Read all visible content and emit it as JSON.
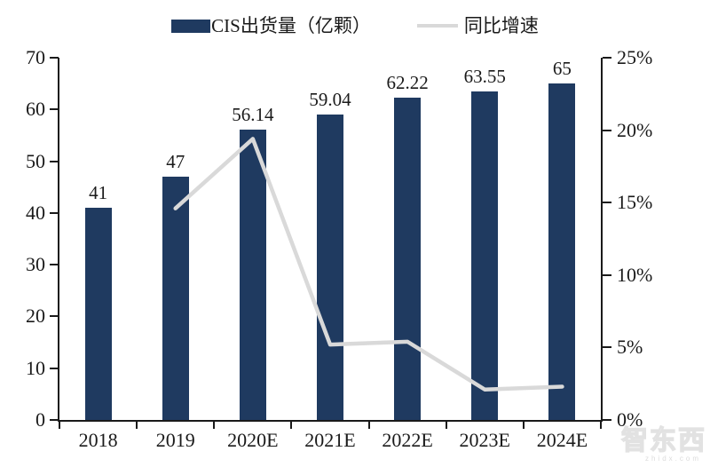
{
  "chart_data": {
    "type": "bar",
    "subtype": "combo-bar-line-dual-axis",
    "categories": [
      "2018",
      "2019",
      "2020E",
      "2021E",
      "2022E",
      "2023E",
      "2024E"
    ],
    "series": [
      {
        "name": "CIS出货量（亿颗）",
        "chart_type": "bar",
        "axis": "left",
        "color": "#1F3A60",
        "values": [
          41,
          47,
          56.14,
          59.04,
          62.22,
          63.55,
          65
        ],
        "data_labels": [
          "41",
          "47",
          "56.14",
          "59.04",
          "62.22",
          "63.55",
          "65"
        ]
      },
      {
        "name": "同比增速",
        "chart_type": "line",
        "axis": "right",
        "color": "#D9D9D9",
        "values": [
          null,
          14.6,
          19.4,
          5.2,
          5.4,
          2.1,
          2.3
        ]
      }
    ],
    "left_axis": {
      "min": 0,
      "max": 70,
      "step": 10,
      "tick_labels": [
        "0",
        "10",
        "20",
        "30",
        "40",
        "50",
        "60",
        "70"
      ]
    },
    "right_axis": {
      "min": 0,
      "max": 25,
      "step": 5,
      "tick_labels": [
        "0%",
        "5%",
        "10%",
        "15%",
        "20%",
        "25%"
      ]
    },
    "legend_position": "top",
    "grid": false,
    "axis_color": "#1a1a1a"
  },
  "watermark": {
    "text": "智东西",
    "subtext": "zhidx.com"
  }
}
